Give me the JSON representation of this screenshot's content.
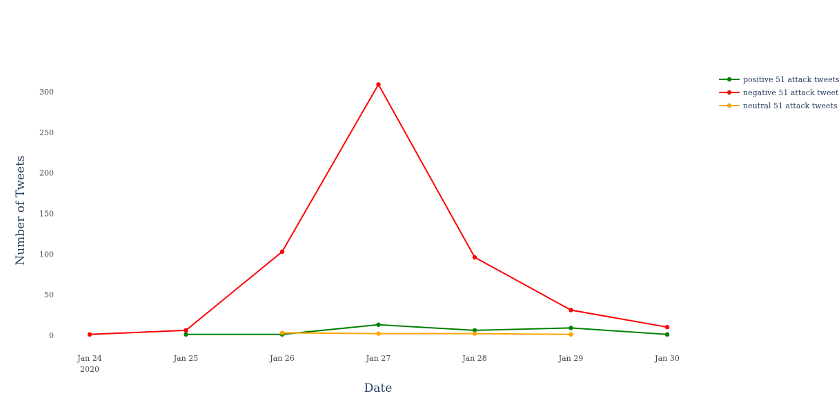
{
  "chart_data": {
    "type": "line",
    "title": "",
    "xlabel": "Date",
    "ylabel": "Number of Tweets",
    "x_tick_labels": [
      "Jan 24",
      "Jan 25",
      "Jan 26",
      "Jan 27",
      "Jan 28",
      "Jan 29",
      "Jan 30"
    ],
    "x_tick_year_label": "2020",
    "y_tick_labels": [
      "0",
      "50",
      "100",
      "150",
      "200",
      "250",
      "300"
    ],
    "y_ticks": [
      0,
      50,
      100,
      150,
      200,
      250,
      300
    ],
    "xlim": [
      "2020-01-24",
      "2020-01-30"
    ],
    "ylim": [
      -20,
      330
    ],
    "grid": false,
    "legend_position": "top-right",
    "series": [
      {
        "name": "positive 51 attack tweets",
        "color": "#008000",
        "x": [
          "2020-01-25",
          "2020-01-26",
          "2020-01-27",
          "2020-01-28",
          "2020-01-29",
          "2020-01-30"
        ],
        "y": [
          1,
          1,
          13,
          6,
          9,
          1
        ]
      },
      {
        "name": "negative 51 attack tweets",
        "color": "#ff0000",
        "x": [
          "2020-01-24",
          "2020-01-25",
          "2020-01-26",
          "2020-01-27",
          "2020-01-28",
          "2020-01-29",
          "2020-01-30"
        ],
        "y": [
          1,
          6,
          103,
          309,
          96,
          31,
          10
        ]
      },
      {
        "name": "neutral 51 attack tweets",
        "color": "#ffa500",
        "x": [
          "2020-01-26",
          "2020-01-27",
          "2020-01-28",
          "2020-01-29"
        ],
        "y": [
          3,
          2,
          2,
          1
        ]
      }
    ]
  }
}
